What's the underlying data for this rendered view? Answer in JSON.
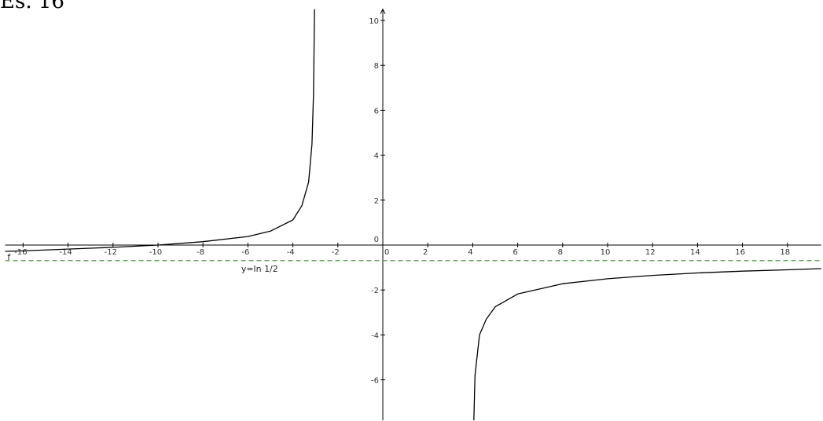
{
  "header": {
    "title": "Es. 16"
  },
  "chart_data": {
    "type": "line",
    "title": "",
    "xlabel": "",
    "ylabel": "",
    "xlim": [
      -16.8,
      19.5
    ],
    "ylim": [
      -7.8,
      10.5
    ],
    "grid": false,
    "x_ticks": [
      -16,
      -14,
      -12,
      -10,
      -8,
      -6,
      -4,
      -2,
      0,
      2,
      4,
      6,
      8,
      10,
      12,
      14,
      16,
      18
    ],
    "y_ticks": [
      -6,
      -4,
      -2,
      0,
      2,
      4,
      6,
      8,
      10
    ],
    "tick_labels_x": [
      "-16",
      "-14",
      "-12",
      "-10",
      "-8",
      "-6",
      "-4",
      "-2",
      "0",
      "2",
      "4",
      "6",
      "8",
      "10",
      "12",
      "14",
      "16",
      "18"
    ],
    "tick_labels_y": [
      "-6",
      "-4",
      "-2",
      "0",
      "2",
      "4",
      "6",
      "8",
      "10"
    ],
    "series": [
      {
        "name": "f",
        "color": "#000000",
        "segments": [
          [
            [
              -16.8,
              -0.28
            ],
            [
              -16,
              -0.26
            ],
            [
              -14,
              -0.18
            ],
            [
              -12,
              -0.1
            ],
            [
              -10,
              0.0
            ],
            [
              -8,
              0.15
            ],
            [
              -6,
              0.38
            ],
            [
              -5,
              0.62
            ],
            [
              -4,
              1.12
            ],
            [
              -3.6,
              1.75
            ],
            [
              -3.3,
              2.8
            ],
            [
              -3.15,
              4.5
            ],
            [
              -3.08,
              6.8
            ],
            [
              -3.04,
              10.5
            ]
          ],
          [
            [
              4.05,
              -7.8
            ],
            [
              4.1,
              -5.8
            ],
            [
              4.3,
              -4.0
            ],
            [
              4.6,
              -3.3
            ],
            [
              5,
              -2.75
            ],
            [
              6,
              -2.18
            ],
            [
              8,
              -1.72
            ],
            [
              10,
              -1.5
            ],
            [
              12,
              -1.35
            ],
            [
              14,
              -1.24
            ],
            [
              16,
              -1.16
            ],
            [
              18,
              -1.1
            ],
            [
              19.5,
              -1.05
            ]
          ]
        ]
      }
    ],
    "asymptote": {
      "y": -0.693,
      "label": "y=ln 1/2",
      "label_x": -6.3,
      "color": "#3a8a2e"
    },
    "annotations": [
      {
        "text": "f",
        "x": -16.7,
        "y": -0.7
      }
    ]
  }
}
